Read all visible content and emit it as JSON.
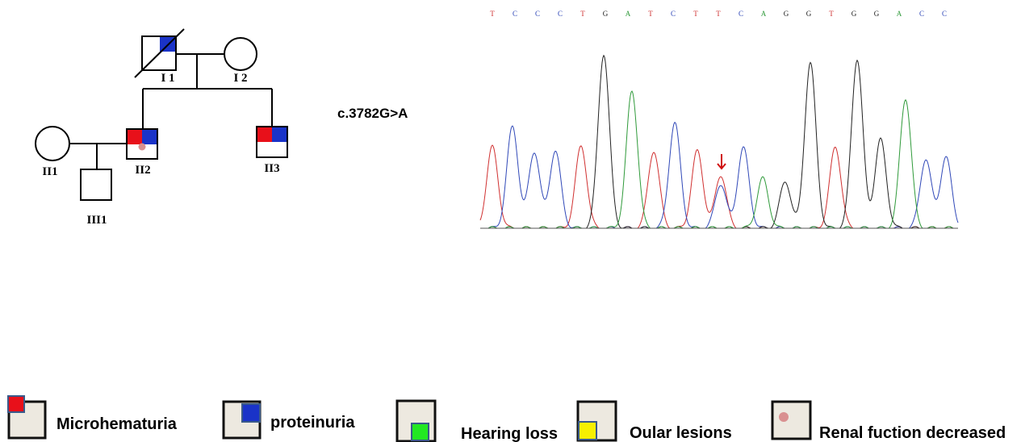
{
  "pedigree": {
    "labels": {
      "I1": "I 1",
      "I2": "I 2",
      "II1": "II1",
      "II2": "II2",
      "II3": "II3",
      "III1": "III1"
    }
  },
  "variant": "c.3782G>A",
  "sequence": [
    "T",
    "C",
    "C",
    "C",
    "T",
    "G",
    "A",
    "T",
    "C",
    "T",
    "T",
    "C",
    "A",
    "G",
    "G",
    "T",
    "G",
    "G",
    "A",
    "C",
    "C"
  ],
  "base_colors": {
    "T": "#d03030",
    "C": "#3048b8",
    "G": "#222222",
    "A": "#2f9a3a"
  },
  "legend": [
    "Microhematuria",
    "proteinuria",
    "Hearing loss",
    "Oular lesions",
    "Renal fuction decreased"
  ]
}
